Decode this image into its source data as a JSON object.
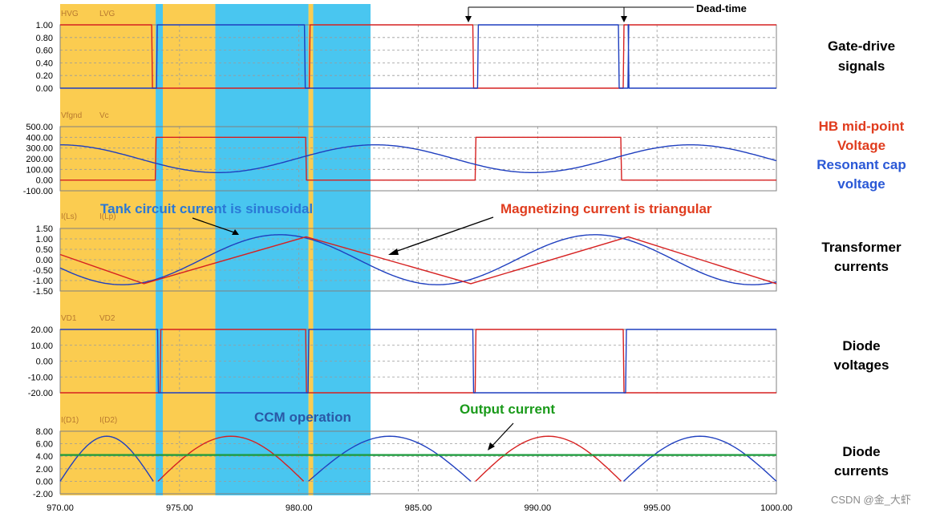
{
  "chart_data": {
    "type": "line",
    "x_range": [
      970,
      1000
    ],
    "x_ticks": [
      "970.00",
      "975.00",
      "980.00",
      "985.00",
      "990.00",
      "995.00",
      "1000.00"
    ],
    "panels": [
      {
        "id": "gate",
        "ylim": [
          0,
          1
        ],
        "y_ticks": [
          "1.00",
          "0.80",
          "0.60",
          "0.40",
          "0.20",
          "0.00"
        ],
        "y_values": [
          1.0,
          0.8,
          0.6,
          0.4,
          0.2,
          0.0
        ],
        "series": [
          {
            "name": "HVG",
            "color": "#d62020",
            "kind": "pulse",
            "high": 1,
            "low": 0,
            "high_intervals": [
              [
                970,
                973.85
              ],
              [
                980.45,
                987.3
              ],
              [
                993.6,
                1000
              ]
            ]
          },
          {
            "name": "LVG",
            "color": "#1f3fbf",
            "kind": "pulse",
            "high": 1,
            "low": 0,
            "high_intervals": [
              [
                974.05,
                980.25
              ],
              [
                987.5,
                993.4
              ],
              [
                993.8,
                993.81
              ]
            ]
          }
        ],
        "right_label": [
          "Gate-drive",
          "signals"
        ],
        "right_label_color": "#000000"
      },
      {
        "id": "vol",
        "ylim": [
          -100,
          500
        ],
        "y_ticks": [
          "500.00",
          "400.00",
          "300.00",
          "200.00",
          "100.00",
          "0.00",
          "-100.00"
        ],
        "y_values": [
          500,
          400,
          300,
          200,
          100,
          0,
          -100
        ],
        "series": [
          {
            "name": "Vfgnd",
            "color": "#d62020",
            "kind": "pulse",
            "high": 400,
            "low": 0,
            "high_intervals": [
              [
                974.0,
                980.3
              ],
              [
                987.4,
                993.5
              ]
            ]
          },
          {
            "name": "Vc",
            "color": "#1f3fbf",
            "kind": "sine",
            "offset": 200,
            "amplitude": 130,
            "period": 13.2,
            "peak_x": 983.2
          }
        ],
        "right_label": [
          "HB mid-point",
          "Voltage",
          "Resonant cap",
          "voltage"
        ],
        "right_label_colors": [
          "#e03c1e",
          "#e03c1e",
          "#2a58d6",
          "#2a58d6"
        ]
      },
      {
        "id": "cur",
        "ylim": [
          -1.5,
          1.5
        ],
        "y_ticks": [
          "1.50",
          "1.00",
          "0.50",
          "0.00",
          "-0.50",
          "-1.00",
          "-1.50"
        ],
        "y_values": [
          1.5,
          1.0,
          0.5,
          0.0,
          -0.5,
          -1.0,
          -1.5
        ],
        "series": [
          {
            "name": "I(Ls)",
            "color": "#1f3fbf",
            "kind": "sine",
            "offset": 0,
            "amplitude": 1.2,
            "period": 13.2,
            "peak_x": 979.2
          },
          {
            "name": "I(Lp)",
            "color": "#d62020",
            "kind": "triangle",
            "points": [
              [
                970,
                0.25
              ],
              [
                973.5,
                -1.15
              ],
              [
                980.3,
                1.1
              ],
              [
                987.2,
                -1.15
              ],
              [
                993.8,
                1.1
              ],
              [
                1000,
                -1.15
              ]
            ]
          }
        ],
        "right_label": [
          "Transformer",
          "currents"
        ],
        "right_label_color": "#000000"
      },
      {
        "id": "diode_v",
        "ylim": [
          -20,
          20
        ],
        "y_ticks": [
          "20.00",
          "10.00",
          "0.00",
          "-10.00",
          "-20.00"
        ],
        "y_values": [
          20,
          10,
          0,
          -10,
          -20
        ],
        "series": [
          {
            "name": "VD1",
            "color": "#d62020",
            "kind": "pulse",
            "high": 20,
            "low": -20,
            "high_intervals": [
              [
                974.2,
                980.3
              ],
              [
                987.4,
                993.6
              ]
            ]
          },
          {
            "name": "VD2",
            "color": "#1f3fbf",
            "kind": "pulse",
            "high": 20,
            "low": -20,
            "high_intervals": [
              [
                970,
                974.1
              ],
              [
                980.4,
                987.3
              ],
              [
                993.7,
                1000
              ]
            ]
          }
        ],
        "right_label": [
          "Diode",
          "voltages"
        ],
        "right_label_color": "#000000"
      },
      {
        "id": "diode_i",
        "ylim": [
          -2,
          8
        ],
        "y_ticks": [
          "8.00",
          "6.00",
          "4.00",
          "2.00",
          "0.00",
          "-2.00"
        ],
        "y_values": [
          8,
          6,
          4,
          2,
          0,
          -2
        ],
        "series": [
          {
            "name": "I(D1)",
            "color": "#d62020",
            "kind": "arches",
            "peak": 7.2,
            "arches": [
              [
                974.1,
                980.2
              ],
              [
                987.4,
                993.5
              ]
            ]
          },
          {
            "name": "I(D2)",
            "color": "#1f3fbf",
            "kind": "arches",
            "peak": 7.2,
            "arches": [
              [
                970.0,
                973.9
              ],
              [
                980.4,
                987.2
              ],
              [
                993.6,
                1000
              ]
            ]
          },
          {
            "name": "",
            "color": "#1a9a3a",
            "kind": "constant",
            "value": 4.2
          }
        ],
        "right_label": [
          "Diode",
          "currents"
        ],
        "right_label_color": "#000000"
      }
    ],
    "shaded_regions": [
      {
        "color": "#fbcc50",
        "x": [
          970.0,
          974.0
        ]
      },
      {
        "color": "#fbcc50",
        "x": [
          974.3,
          976.5
        ]
      },
      {
        "color": "#fbcc50",
        "x": [
          980.4,
          980.6
        ]
      },
      {
        "color": "#49c6f0",
        "x": [
          974.0,
          974.3
        ]
      },
      {
        "color": "#49c6f0",
        "x": [
          976.5,
          980.4
        ]
      },
      {
        "color": "#49c6f0",
        "x": [
          980.6,
          983.0
        ]
      }
    ],
    "annotations": [
      {
        "text": "Dead-time",
        "color": "#000000"
      },
      {
        "text": "Tank circuit current is sinusoidal",
        "color": "#2a78d6"
      },
      {
        "text": "Magnetizing current is triangular",
        "color": "#e03c1e"
      },
      {
        "text": "CCM operation",
        "color": "#2a58a6"
      },
      {
        "text": "Output current",
        "color": "#1a9a1a"
      }
    ],
    "grid": true
  },
  "watermark": "CSDN @金_大虾"
}
